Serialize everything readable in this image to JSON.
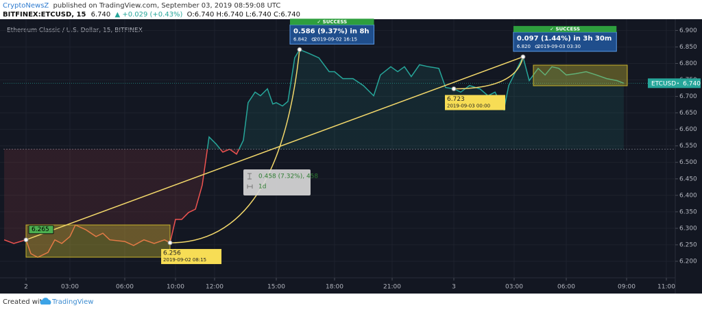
{
  "header": {
    "author": "CryptoNewsZ",
    "published": "published on TradingView.com, September 03, 2019 08:59:08 UTC",
    "symbol": "BITFINEX:ETCUSD, 15",
    "last": "6.740",
    "change": "▲ +0.029 (+0.43%)",
    "ohlc": "O:6.740 H:6.740 L:6.740 C:6.740"
  },
  "chart_data": {
    "type": "line",
    "title": "Ethereum Classic / U.S. Dollar, 15, BITFINEX",
    "x": [
      -1.5,
      -0.84,
      0,
      0.33,
      0.8,
      1.5,
      1.97,
      2.44,
      3,
      3.3,
      3.86,
      4.43,
      4.8,
      5.18,
      6,
      6.7,
      7.51,
      8.32,
      9.14,
      9.57,
      10,
      10.32,
      10.67,
      11.02,
      11.37,
      11.72,
      12.07,
      12.4,
      12.73,
      13.07,
      13.4,
      13.63,
      13.97,
      14.23,
      14.57,
      14.83,
      15,
      15.32,
      15.6,
      15.95,
      16.2,
      16.66,
      17.19,
      17.72,
      18,
      18.43,
      18.96,
      19.5,
      20.04,
      20.39,
      20.93,
      21.27,
      21.6,
      21.93,
      22.33,
      22.77,
      23.27,
      23.6,
      24,
      24.34,
      24.78,
      25.3,
      25.7,
      26.05,
      26.49,
      26.73,
      27.08,
      27.51,
      27.87,
      28.38,
      28.78,
      29.17,
      29.57,
      30,
      30.48,
      30.99,
      31.5,
      32.01,
      32.52,
      32.86
    ],
    "series": [
      {
        "name": "ETCUSD",
        "color": "#26a69a",
        "down_color": "#ef5350",
        "values": [
          6.265,
          6.254,
          6.265,
          6.223,
          6.212,
          6.227,
          6.265,
          6.254,
          6.275,
          6.31,
          6.296,
          6.275,
          6.285,
          6.265,
          6.26,
          6.248,
          6.265,
          6.254,
          6.265,
          6.256,
          6.327,
          6.327,
          6.348,
          6.358,
          6.431,
          6.577,
          6.556,
          6.531,
          6.54,
          6.525,
          6.567,
          6.681,
          6.713,
          6.702,
          6.723,
          6.677,
          6.681,
          6.671,
          6.685,
          6.817,
          6.842,
          6.831,
          6.817,
          6.775,
          6.775,
          6.754,
          6.754,
          6.733,
          6.702,
          6.765,
          6.79,
          6.775,
          6.79,
          6.76,
          6.796,
          6.79,
          6.785,
          6.727,
          6.723,
          6.713,
          6.733,
          6.723,
          6.702,
          6.713,
          6.66,
          6.733,
          6.775,
          6.82,
          6.748,
          6.785,
          6.765,
          6.79,
          6.785,
          6.765,
          6.769,
          6.775,
          6.765,
          6.754,
          6.748,
          6.74
        ]
      }
    ],
    "baseline": 6.54,
    "xlim": [
      -1.55,
      35.45
    ],
    "xticks": [
      {
        "value": 0,
        "label": "2"
      },
      {
        "value": 3,
        "label": "03:00"
      },
      {
        "value": 6,
        "label": "06:00"
      },
      {
        "value": 10,
        "label": "10:00"
      },
      {
        "value": 12,
        "label": "12:00"
      },
      {
        "value": 15,
        "label": "15:00"
      },
      {
        "value": 18,
        "label": "18:00"
      },
      {
        "value": 21,
        "label": "21:00"
      },
      {
        "value": 24,
        "label": "3"
      },
      {
        "value": 27,
        "label": "03:00"
      },
      {
        "value": 30,
        "label": "06:00"
      },
      {
        "value": 33,
        "label": "09:00"
      },
      {
        "value": 35,
        "label": "11:00"
      }
    ],
    "ylim": [
      6.15,
      6.93
    ],
    "yticks": [
      {
        "value": 6.2,
        "label": "6.200"
      },
      {
        "value": 6.25,
        "label": "6.250"
      },
      {
        "value": 6.3,
        "label": "6.300"
      },
      {
        "value": 6.35,
        "label": "6.350"
      },
      {
        "value": 6.4,
        "label": "6.400"
      },
      {
        "value": 6.45,
        "label": "6.450"
      },
      {
        "value": 6.5,
        "label": "6.500"
      },
      {
        "value": 6.55,
        "label": "6.550"
      },
      {
        "value": 6.6,
        "label": "6.600"
      },
      {
        "value": 6.65,
        "label": "6.650"
      },
      {
        "value": 6.7,
        "label": "6.700"
      },
      {
        "value": 6.75,
        "label": "6.750"
      },
      {
        "value": 6.8,
        "label": "6.800"
      },
      {
        "value": 6.85,
        "label": "6.850"
      },
      {
        "value": 6.9,
        "label": "6.900"
      }
    ],
    "grid": true,
    "last_price": {
      "value": 6.74,
      "label": "6.740"
    },
    "annotations": [
      {
        "x": 0,
        "value": 6.265,
        "label": "6.265"
      },
      {
        "x": 9.57,
        "value": 6.256,
        "label": "6.256",
        "time": "2019-09-02 08:15"
      },
      {
        "x": 24,
        "value": 6.723,
        "label": "6.723",
        "time": "2019-09-03 00:00"
      }
    ],
    "measures": [
      {
        "x": 16.2,
        "value": 6.842,
        "status": "✓ SUCCESS",
        "change": "0.586 (9.37%) in 8h",
        "target": "6.842",
        "time": "2019-09-02  16:15"
      },
      {
        "x": 27.51,
        "value": 6.82,
        "status": "✓ SUCCESS",
        "change": "0.097 (1.44%) in 3h 30m",
        "target": "6.820",
        "time": "2019-09-03  03:30"
      }
    ],
    "range_info": {
      "change": "0.458 (7.32%), 458",
      "period": "1d"
    }
  },
  "footer": {
    "created": "Created with",
    "brand": "TradingView"
  }
}
